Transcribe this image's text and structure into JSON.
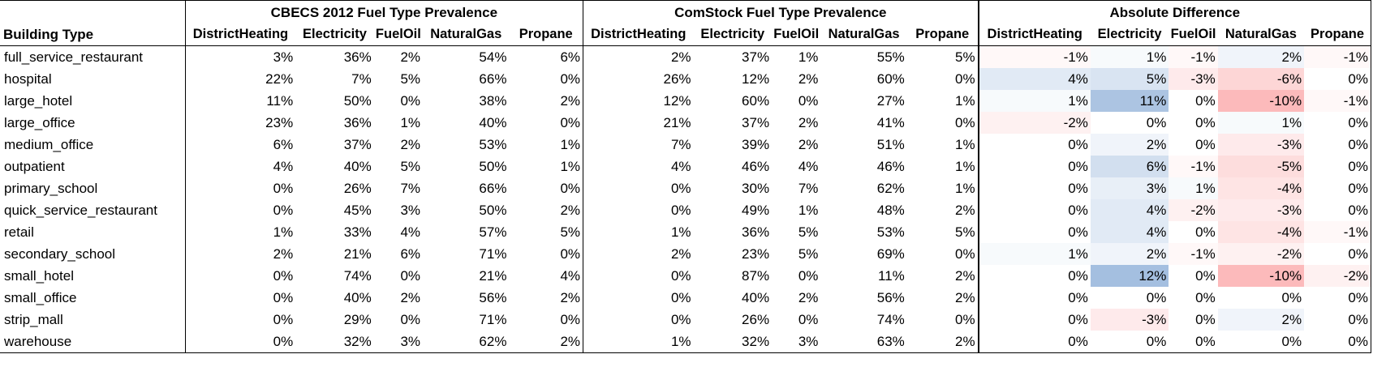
{
  "chart_data": {
    "type": "table",
    "row_header": "Building Type",
    "fuel_columns": [
      "DistrictHeating",
      "Electricity",
      "FuelOil",
      "NaturalGas",
      "Propane"
    ],
    "groups": [
      {
        "title": "CBECS 2012 Fuel Type Prevalence",
        "key": "cbecs"
      },
      {
        "title": "ComStock Fuel Type Prevalence",
        "key": "comstock"
      },
      {
        "title": "Absolute Difference",
        "key": "diff"
      }
    ],
    "diff_colors": {
      "positive": "#5a8ac6",
      "negative": "#f8696b"
    },
    "rows": [
      {
        "name": "full_service_restaurant",
        "cbecs": [
          3,
          36,
          2,
          54,
          6
        ],
        "comstock": [
          2,
          37,
          1,
          55,
          5
        ],
        "diff": [
          -1,
          1,
          -1,
          2,
          -1
        ]
      },
      {
        "name": "hospital",
        "cbecs": [
          22,
          7,
          5,
          66,
          0
        ],
        "comstock": [
          26,
          12,
          2,
          60,
          0
        ],
        "diff": [
          4,
          5,
          -3,
          -6,
          0
        ]
      },
      {
        "name": "large_hotel",
        "cbecs": [
          11,
          50,
          0,
          38,
          2
        ],
        "comstock": [
          12,
          60,
          0,
          27,
          1
        ],
        "diff": [
          1,
          11,
          0,
          -10,
          -1
        ]
      },
      {
        "name": "large_office",
        "cbecs": [
          23,
          36,
          1,
          40,
          0
        ],
        "comstock": [
          21,
          37,
          2,
          41,
          0
        ],
        "diff": [
          -2,
          0,
          0,
          1,
          0
        ]
      },
      {
        "name": "medium_office",
        "cbecs": [
          6,
          37,
          2,
          53,
          1
        ],
        "comstock": [
          7,
          39,
          2,
          51,
          1
        ],
        "diff": [
          0,
          2,
          0,
          -3,
          0
        ]
      },
      {
        "name": "outpatient",
        "cbecs": [
          4,
          40,
          5,
          50,
          1
        ],
        "comstock": [
          4,
          46,
          4,
          46,
          1
        ],
        "diff": [
          0,
          6,
          -1,
          -5,
          0
        ]
      },
      {
        "name": "primary_school",
        "cbecs": [
          0,
          26,
          7,
          66,
          0
        ],
        "comstock": [
          0,
          30,
          7,
          62,
          1
        ],
        "diff": [
          0,
          3,
          1,
          -4,
          0
        ]
      },
      {
        "name": "quick_service_restaurant",
        "cbecs": [
          0,
          45,
          3,
          50,
          2
        ],
        "comstock": [
          0,
          49,
          1,
          48,
          2
        ],
        "diff": [
          0,
          4,
          -2,
          -3,
          0
        ]
      },
      {
        "name": "retail",
        "cbecs": [
          1,
          33,
          4,
          57,
          5
        ],
        "comstock": [
          1,
          36,
          5,
          53,
          5
        ],
        "diff": [
          0,
          4,
          0,
          -4,
          -1
        ]
      },
      {
        "name": "secondary_school",
        "cbecs": [
          2,
          21,
          6,
          71,
          0
        ],
        "comstock": [
          2,
          23,
          5,
          69,
          0
        ],
        "diff": [
          1,
          2,
          -1,
          -2,
          0
        ]
      },
      {
        "name": "small_hotel",
        "cbecs": [
          0,
          74,
          0,
          21,
          4
        ],
        "comstock": [
          0,
          87,
          0,
          11,
          2
        ],
        "diff": [
          0,
          12,
          0,
          -10,
          -2
        ]
      },
      {
        "name": "small_office",
        "cbecs": [
          0,
          40,
          2,
          56,
          2
        ],
        "comstock": [
          0,
          40,
          2,
          56,
          2
        ],
        "diff": [
          0,
          0,
          0,
          0,
          0
        ]
      },
      {
        "name": "strip_mall",
        "cbecs": [
          0,
          29,
          0,
          71,
          0
        ],
        "comstock": [
          0,
          26,
          0,
          74,
          0
        ],
        "diff": [
          0,
          -3,
          0,
          2,
          0
        ]
      },
      {
        "name": "warehouse",
        "cbecs": [
          0,
          32,
          3,
          62,
          2
        ],
        "comstock": [
          1,
          32,
          3,
          63,
          2
        ],
        "diff": [
          0,
          0,
          0,
          0,
          0
        ]
      }
    ]
  }
}
